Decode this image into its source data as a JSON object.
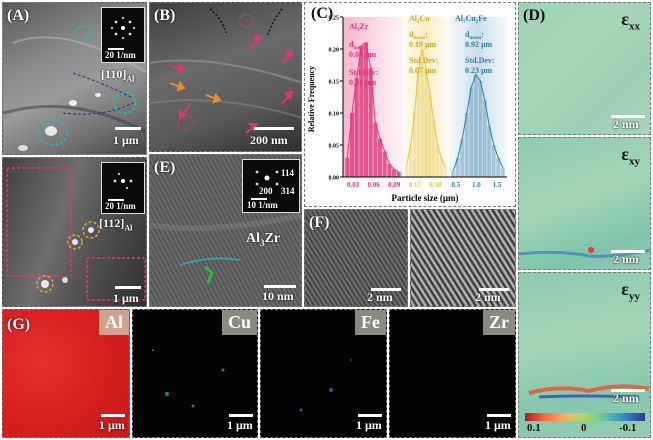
{
  "panels": {
    "A": {
      "label": "(A)",
      "inset_scale_top": "20 1/nm",
      "zone_top": "[110]",
      "zone_top_sub": "Al",
      "scale_top": "1 μm",
      "inset_scale_bottom": "20 1/nm",
      "zone_bottom": "[112]",
      "zone_bottom_sub": "Al",
      "scale_bottom": "1 μm"
    },
    "B": {
      "label": "(B)",
      "scale": "200 nm"
    },
    "E": {
      "label": "(E)",
      "phase": "Al",
      "phase_sub": "3",
      "phase_tail": "Zr",
      "inset_scale": "10 1/nm",
      "spot_114": "114",
      "spot_200": "200",
      "spot_314": "314",
      "scale": "10 nm"
    },
    "F": {
      "label": "(F)",
      "scale_left": "2 nm",
      "scale_right": "2 nm"
    },
    "D": {
      "label": "(D)",
      "eps_xx": "xx",
      "eps_xy": "xy",
      "eps_yy": "yy",
      "eps_symbol": "ε",
      "scale_1": "2 nm",
      "scale_2": "2 nm",
      "scale_3": "2 nm",
      "colorbar_ticks": [
        "0.1",
        "0",
        "-0.1"
      ]
    },
    "G": {
      "label": "(G)",
      "maps": [
        {
          "element": "Al",
          "scale": "1 μm"
        },
        {
          "element": "Cu",
          "scale": "1 μm"
        },
        {
          "element": "Fe",
          "scale": "1 μm"
        },
        {
          "element": "Zr",
          "scale": "1 μm"
        }
      ]
    }
  },
  "colors": {
    "al3zr": "#e0357a",
    "al2cu": "#e8c33a",
    "al7cu2fe": "#2e7fa8",
    "al_map": "#e02020"
  },
  "chart_data": {
    "type": "bar",
    "label": "(C)",
    "xlabel": "Particle size (μm)",
    "ylabel": "Relative Frequency",
    "ylim": [
      0,
      0.25
    ],
    "yticks": [
      "0.00",
      "0.05",
      "0.10",
      "0.15",
      "0.20",
      "0.25"
    ],
    "xticks": [
      "0.03",
      "0.06",
      "0.09",
      "0.15",
      "0.30",
      "0.5",
      "1.0",
      "1.5"
    ],
    "series": [
      {
        "name": "Al3Zr",
        "name_main": "Al",
        "name_sub": "3",
        "name_tail": "Zr",
        "mean_label": "d",
        "mean_sub": "mean",
        "mean_value": "0.04 μm",
        "std_label": "Std.Dev:",
        "std_value": "0.01 μm",
        "color": "#e0357a",
        "values": [
          0.03,
          0.1,
          0.155,
          0.205,
          0.21,
          0.17,
          0.085,
          0.06,
          0.04,
          0.02,
          0.012,
          0.008
        ]
      },
      {
        "name": "Al2Cu",
        "name_main": "Al",
        "name_sub": "2",
        "name_tail": "Cu",
        "mean_label": "d",
        "mean_sub": "mean",
        "mean_value": "0.19 μm",
        "std_label": "Std.Dev:",
        "std_value": "0.07 μm",
        "color": "#e8c33a",
        "values": [
          0.02,
          0.05,
          0.1,
          0.165,
          0.2,
          0.17,
          0.13,
          0.09,
          0.05,
          0.03,
          0.015
        ]
      },
      {
        "name": "Al7Cu2Fe",
        "name_main": "Al",
        "name_sub": "7",
        "name_tail": "Cu",
        "name_sub2": "2",
        "name_tail2": "Fe",
        "mean_label": "d",
        "mean_sub": "mean",
        "mean_value": "0.92 μm",
        "std_label": "Std.Dev:",
        "std_value": "0.23 μm",
        "color": "#2e7fa8",
        "values": [
          0.01,
          0.03,
          0.06,
          0.1,
          0.14,
          0.16,
          0.15,
          0.12,
          0.08,
          0.05,
          0.03,
          0.015
        ]
      }
    ]
  }
}
